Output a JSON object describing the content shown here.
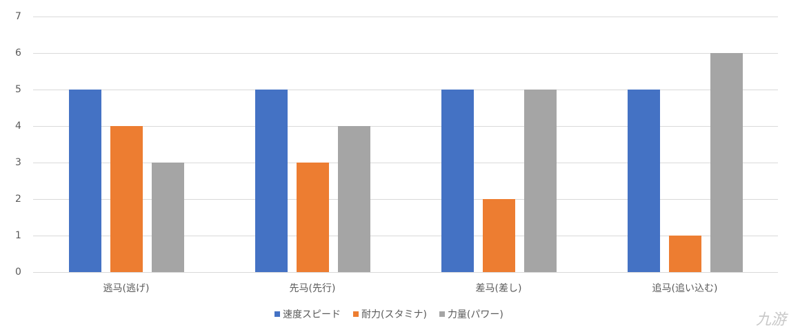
{
  "chart_data": {
    "type": "bar",
    "title": "",
    "xlabel": "",
    "ylabel": "",
    "ylim": [
      0,
      7
    ],
    "yticks": [
      0,
      1,
      2,
      3,
      4,
      5,
      6,
      7
    ],
    "grid": true,
    "legend_position": "bottom",
    "categories": [
      "逃马(逃げ)",
      "先马(先行)",
      "差马(差し)",
      "追马(追い込む)"
    ],
    "series": [
      {
        "name": "速度スピード",
        "color": "#4472c4",
        "values": [
          5,
          5,
          5,
          5
        ]
      },
      {
        "name": "耐力(スタミナ)",
        "color": "#ed7d31",
        "values": [
          4,
          3,
          2,
          1
        ]
      },
      {
        "name": "力量(パワー)",
        "color": "#a5a5a5",
        "values": [
          3,
          4,
          5,
          6
        ]
      }
    ]
  },
  "watermark": "九游"
}
